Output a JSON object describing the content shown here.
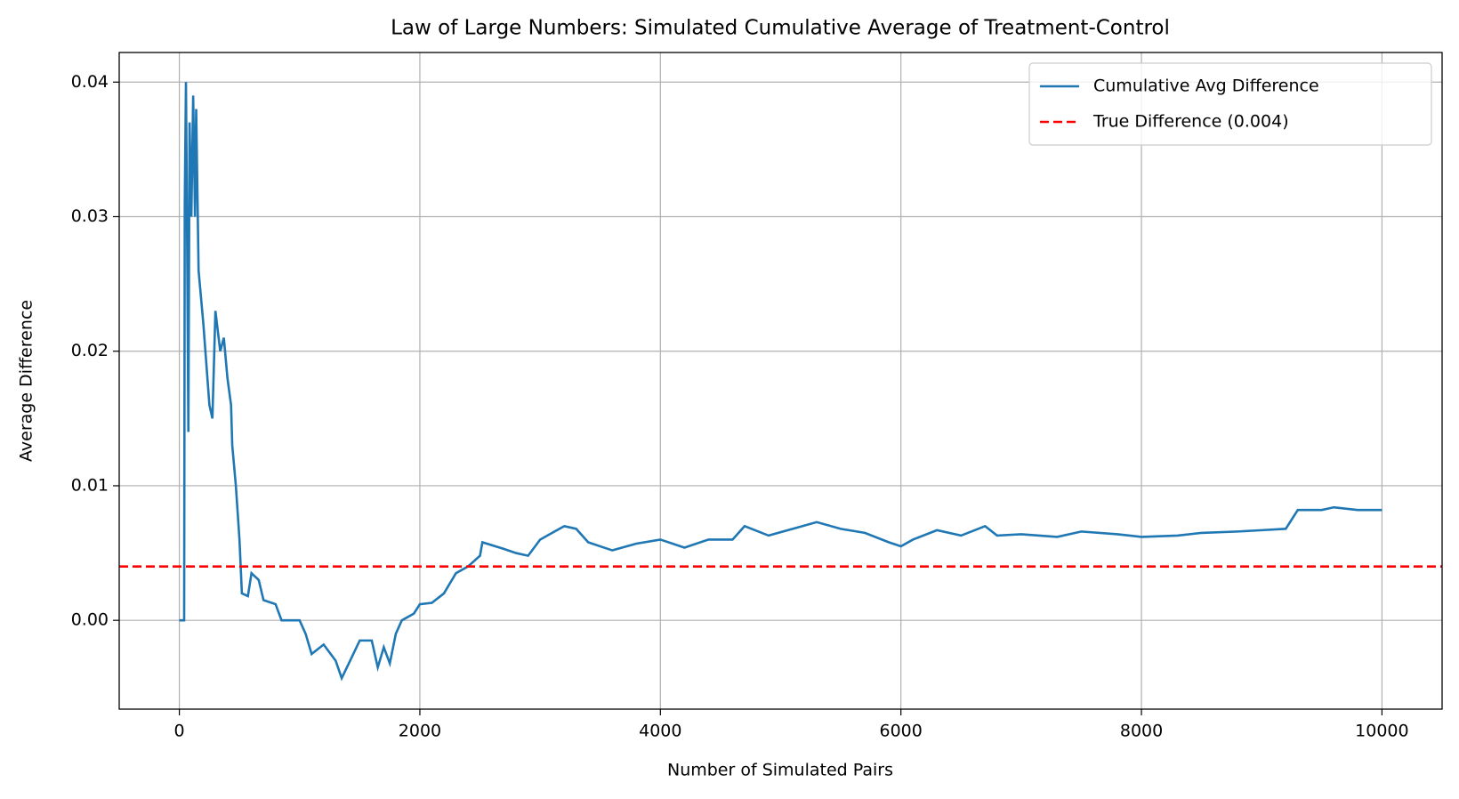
{
  "chart_data": {
    "type": "line",
    "title": "Law of Large Numbers: Simulated Cumulative Average of Treatment-Control",
    "x_label": "Number of Simulated Pairs",
    "y_label": "Average Difference",
    "xlim": [
      -500,
      10500
    ],
    "ylim": [
      -0.0066,
      0.0422
    ],
    "xticks": [
      0,
      2000,
      4000,
      6000,
      8000,
      10000
    ],
    "yticks": [
      {
        "value": 0,
        "label": "0.00"
      },
      0.01,
      0.02,
      0.03,
      0.04
    ],
    "grid": true,
    "legend": "upper right",
    "x": [
      0,
      40,
      45,
      55,
      65,
      75,
      85,
      100,
      115,
      130,
      140,
      160,
      200,
      250,
      275,
      300,
      340,
      370,
      400,
      430,
      440,
      470,
      500,
      520,
      570,
      600,
      660,
      700,
      800,
      850,
      1000,
      1050,
      1100,
      1200,
      1300,
      1350,
      1420,
      1500,
      1600,
      1650,
      1700,
      1750,
      1800,
      1850,
      1950,
      2000,
      2100,
      2200,
      2300,
      2400,
      2500,
      2520,
      2700,
      2800,
      2900,
      3000,
      3100,
      3200,
      3300,
      3400,
      3600,
      3800,
      4000,
      4200,
      4400,
      4600,
      4700,
      4900,
      5100,
      5300,
      5500,
      5700,
      5900,
      6000,
      6100,
      6300,
      6500,
      6700,
      6800,
      7000,
      7300,
      7500,
      7800,
      8000,
      8300,
      8500,
      8800,
      9000,
      9200,
      9300,
      9500,
      9600,
      9800,
      10000
    ],
    "series": [
      {
        "name": "Cumulative Avg Difference",
        "color": "#1f77b4",
        "values": [
          0,
          0,
          0.031,
          0.04,
          0.028,
          0.014,
          0.037,
          0.03,
          0.039,
          0.03,
          0.038,
          0.026,
          0.022,
          0.016,
          0.015,
          0.023,
          0.02,
          0.021,
          0.018,
          0.016,
          0.013,
          0.01,
          0.006,
          0.002,
          0.0018,
          0.0035,
          0.003,
          0.0015,
          0.0012,
          0,
          0,
          -0.001,
          -0.0025,
          -0.0018,
          -0.003,
          -0.0043,
          -0.003,
          -0.0015,
          -0.0015,
          -0.0035,
          -0.002,
          -0.0032,
          -0.001,
          0,
          0.0005,
          0.0012,
          0.0013,
          0.002,
          0.0035,
          0.004,
          0.0048,
          0.0058,
          0.0053,
          0.005,
          0.0048,
          0.006,
          0.0065,
          0.007,
          0.0068,
          0.0058,
          0.0052,
          0.0057,
          0.006,
          0.0054,
          0.006,
          0.006,
          0.007,
          0.0063,
          0.0068,
          0.0073,
          0.0068,
          0.0065,
          0.0058,
          0.0055,
          0.006,
          0.0067,
          0.0063,
          0.007,
          0.0063,
          0.0064,
          0.0062,
          0.0066,
          0.0064,
          0.0062,
          0.0063,
          0.0065,
          0.0066,
          0.0067,
          0.0068,
          0.0082,
          0.0082,
          0.0084,
          0.0082,
          0.0082
        ]
      }
    ],
    "reference_line": {
      "name": "True Difference (0.004)",
      "color": "#ff0000",
      "value": 0.004,
      "style": "dashed"
    }
  }
}
